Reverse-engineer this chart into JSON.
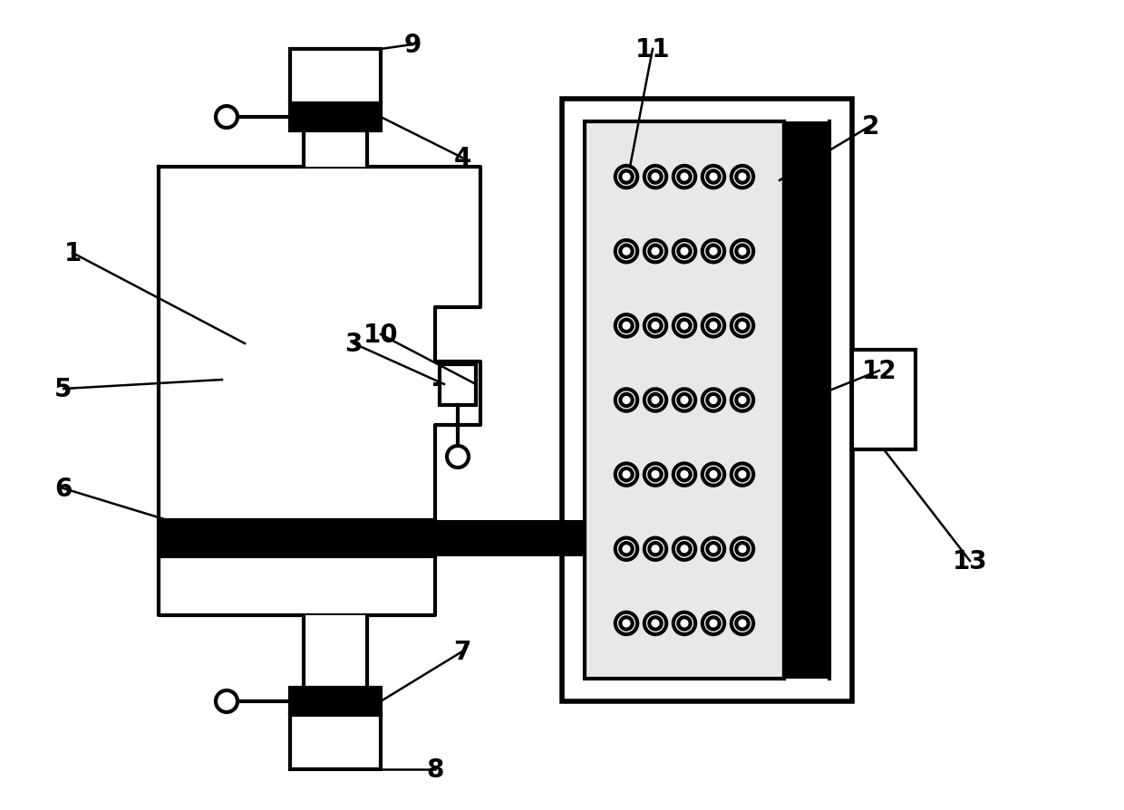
{
  "bg_color": "#ffffff",
  "lc": "#000000",
  "lw": 3.0,
  "fs": 20,
  "fw": "bold",
  "annotation_lw": 1.8
}
